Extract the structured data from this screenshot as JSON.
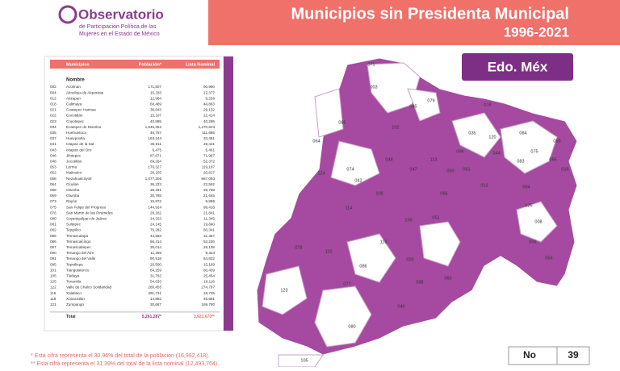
{
  "header": {
    "logo_title": "Observatorio",
    "logo_subtitle_1": "de Participación Política de las",
    "logo_subtitle_2": "Mujeres en el Estado de México",
    "title": "Municipios sin Presidenta Municipal",
    "years": "1996-2021"
  },
  "badge": "Edo. Méx",
  "table": {
    "columns": [
      "Municipios",
      "Población*",
      "Lista Nominal"
    ],
    "subheader": "Nombre",
    "rows": [
      [
        "002",
        "Acolman",
        "171,507",
        "90,990"
      ],
      [
        "004",
        "Almoloya de Alquisiras",
        "15,333",
        "12,377"
      ],
      [
        "012",
        "Atizapan",
        "12,984",
        "9,258"
      ],
      [
        "018",
        "Calimaya",
        "68,489",
        "44,863"
      ],
      [
        "021",
        "Coatepec Harinas",
        "38,643",
        "29,132"
      ],
      [
        "022",
        "Cocotitlán",
        "15,107",
        "12,414"
      ],
      [
        "023",
        "Coyotepec",
        "40,885",
        "40,285"
      ],
      [
        "034",
        "Ecatepec de Morelos",
        "1,645,352",
        "1,270,843"
      ],
      [
        "035",
        "Huehuetoca",
        "46,757",
        "111,665"
      ],
      [
        "037",
        "Hueypoxtla",
        "163,244",
        "33,461"
      ],
      [
        "041",
        "Ixtapan de la Sal",
        "36,911",
        "28,441"
      ],
      [
        "043",
        "Ixtapan del Oro",
        "6,475",
        "5,461"
      ],
      [
        "046",
        "Jilotepec",
        "87,671",
        "71,987"
      ],
      [
        "048",
        "Jocotitlán",
        "69,264",
        "52,372"
      ],
      [
        "053",
        "Lerma",
        "170,327",
        "119,187"
      ],
      [
        "052",
        "Malinalco",
        "28,155",
        "20,817"
      ],
      [
        "058",
        "Nezahualcóyotl",
        "1,077,208",
        "867,093"
      ],
      [
        "064",
        "Ocuilan",
        "36,223",
        "22,562"
      ],
      [
        "068",
        "Otumba",
        "36,331",
        "28,798"
      ],
      [
        "069",
        "Otumba",
        "30,785",
        "21,645"
      ],
      [
        "073",
        "Rayón",
        "15,972",
        "9,896"
      ],
      [
        "075",
        "San Felipe del Progreso",
        "144,924",
        "99,418"
      ],
      [
        "076",
        "San Martín de las Pirámides",
        "29,182",
        "21,841"
      ],
      [
        "080",
        "Soyaniquilpan de Juárez",
        "14,323",
        "11,345"
      ],
      [
        "081",
        "Sultepec",
        "24,145",
        "19,840"
      ],
      [
        "082",
        "Tejupilco",
        "79,282",
        "60,341"
      ],
      [
        "085",
        "Temascalapa",
        "43,593",
        "31,357"
      ],
      [
        "086",
        "Temascalcingo",
        "66,414",
        "52,226"
      ],
      [
        "087",
        "Temascaltepec",
        "35,014",
        "26,108"
      ],
      [
        "090",
        "Tenango del Aire",
        "11,359",
        "9,344"
      ],
      [
        "091",
        "Tenango del Valle",
        "90,518",
        "64,822"
      ],
      [
        "095",
        "Tepetlixpa",
        "20,500",
        "15,169"
      ],
      [
        "101",
        "Tianguistenco",
        "84,259",
        "60,439"
      ],
      [
        "105",
        "Tlatlaya",
        "31,762",
        "25,454"
      ],
      [
        "125",
        "Tonanitla",
        "54,633",
        "10,116"
      ],
      [
        "122",
        "Valle de Chalco Solidaridad",
        "280,455",
        "274,797"
      ],
      [
        "115",
        "Xalatlaco",
        "391,731",
        "19,745"
      ],
      [
        "116",
        "Xonacatlán",
        "14,882",
        "46,881"
      ],
      [
        "121",
        "Zumpango",
        "30,687",
        "169,780"
      ]
    ],
    "total_label": "Total",
    "total_population": "5,261,287*",
    "total_list": "3,922,670**"
  },
  "footnotes": [
    "* Esta cifra representa el 30.96% del total de la población (16,992,418).",
    "** Esta cifra representa el 31.39% del total de la lista nominal (12,493,764)."
  ],
  "map": {
    "labels": [
      "071",
      "003",
      "045",
      "079",
      "018",
      "085",
      "064",
      "102",
      "048",
      "074",
      "124",
      "042",
      "113",
      "047",
      "050",
      "061",
      "035",
      "120",
      "096",
      "084",
      "059",
      "044",
      "075",
      "065",
      "083",
      "016",
      "108",
      "114",
      "106",
      "051",
      "118",
      "078",
      "110",
      "063",
      "123",
      "077",
      "066",
      "105",
      "088",
      "025",
      "009",
      "054",
      "013",
      "094",
      "008",
      "080",
      "040",
      "086",
      "020"
    ]
  },
  "page_number": {
    "label": "No",
    "value": "39"
  }
}
